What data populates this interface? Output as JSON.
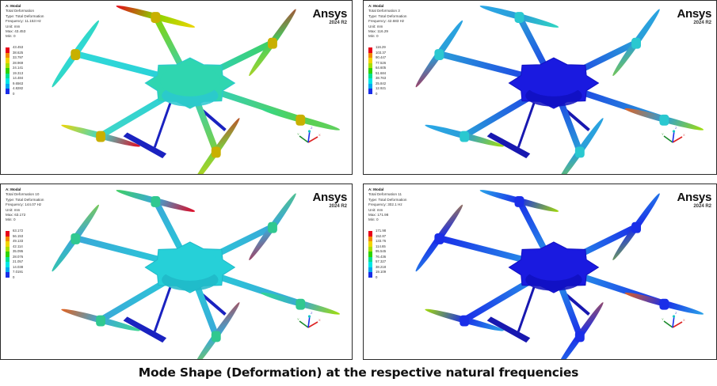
{
  "panels": [
    {
      "header": "A: Modal",
      "result": "Total Deformation",
      "type": "Type: Total Deformation",
      "frequency": "Frequency: 11.153 Hz",
      "unit": "Unit: mm",
      "max": "Max: 43.453",
      "min": "Min: 0",
      "legend": [
        "43.453",
        "38.625",
        "33.797",
        "28.969",
        "24.141",
        "19.313",
        "14.484",
        "9.6563",
        "4.8282",
        "0"
      ],
      "logo": "Ansys",
      "version": "2024 R2"
    },
    {
      "header": "A: Modal",
      "result": "Total Deformation 3",
      "type": "Type: Total Deformation",
      "frequency": "Frequency: 42.683 Hz",
      "unit": "Unit: mm",
      "max": "Max: 116.29",
      "min": "Min: 0",
      "legend": [
        "116.29",
        "103.37",
        "90.447",
        "77.526",
        "64.605",
        "51.684",
        "38.763",
        "25.842",
        "12.921",
        "0"
      ],
      "logo": "Ansys",
      "version": "2024 R2"
    },
    {
      "header": "A: Modal",
      "result": "Total Deformation 10",
      "type": "Type: Total Deformation",
      "frequency": "Frequency: 144.07 Hz",
      "unit": "Unit: mm",
      "max": "Max: 63.172",
      "min": "Min: 0",
      "legend": [
        "63.172",
        "56.153",
        "49.133",
        "42.114",
        "35.095",
        "28.076",
        "21.057",
        "14.038",
        "7.0191",
        "0"
      ],
      "logo": "Ansys",
      "version": "2024 R2"
    },
    {
      "header": "A: Modal",
      "result": "Total Deformation 11",
      "type": "Type: Total Deformation",
      "frequency": "Frequency: 302.1 Hz",
      "unit": "Unit: mm",
      "max": "Max: 171.98",
      "min": "Min: 0",
      "legend": [
        "171.98",
        "152.87",
        "133.76",
        "114.65",
        "95.545",
        "76.436",
        "57.327",
        "38.218",
        "19.109",
        "0"
      ],
      "logo": "Ansys",
      "version": "2024 R2"
    }
  ],
  "legend_colors": [
    "#e8001a",
    "#f28a00",
    "#f2d500",
    "#a6e000",
    "#2ed400",
    "#00e090",
    "#00e6e6",
    "#00a8f0",
    "#1a2ee8"
  ],
  "triad": {
    "x": "X",
    "y": "Y",
    "z": "Z"
  },
  "caption": "Mode Shape (Deformation) at the respective natural frequencies"
}
